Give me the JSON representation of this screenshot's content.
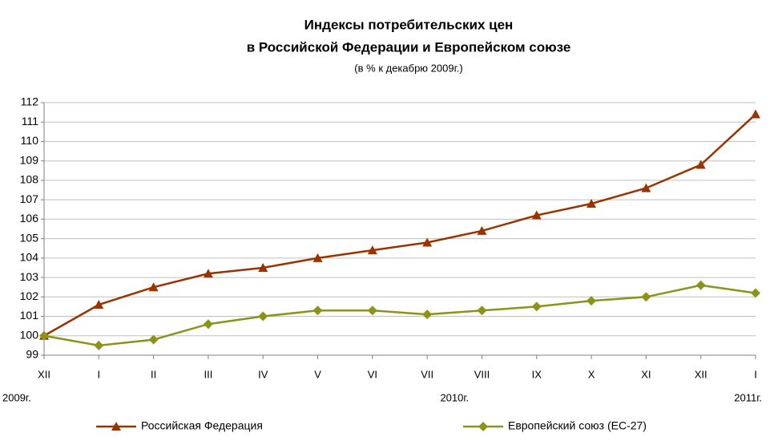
{
  "chart_data": {
    "type": "line",
    "title": [
      "Индексы потребительских цен",
      "в Российской Федерации и Европейском союзе"
    ],
    "subtitle": "(в % к декабрю 2009г.)",
    "categories": [
      "XII",
      "I",
      "II",
      "III",
      "IV",
      "V",
      "VI",
      "VII",
      "VIII",
      "IX",
      "X",
      "XI",
      "XII",
      "I"
    ],
    "years": [
      "2009г.",
      "2010г.",
      "2011г."
    ],
    "series": [
      {
        "name": "Российская Федерация",
        "color": "#993300",
        "marker": "triangle",
        "values": [
          100,
          101.6,
          102.5,
          103.2,
          103.5,
          104.0,
          104.4,
          104.8,
          105.4,
          106.2,
          106.8,
          107.6,
          108.8,
          111.4
        ]
      },
      {
        "name": "Европейский союз (ЕС-27)",
        "color": "#8c9418",
        "marker": "diamond",
        "values": [
          100,
          99.5,
          99.8,
          100.6,
          101.0,
          101.3,
          101.3,
          101.1,
          101.3,
          101.5,
          101.8,
          102.0,
          102.6,
          102.2
        ]
      }
    ],
    "ylim": [
      99,
      112
    ],
    "yticks": [
      99,
      100,
      101,
      102,
      103,
      104,
      105,
      106,
      107,
      108,
      109,
      110,
      111,
      112
    ],
    "grid": true
  }
}
